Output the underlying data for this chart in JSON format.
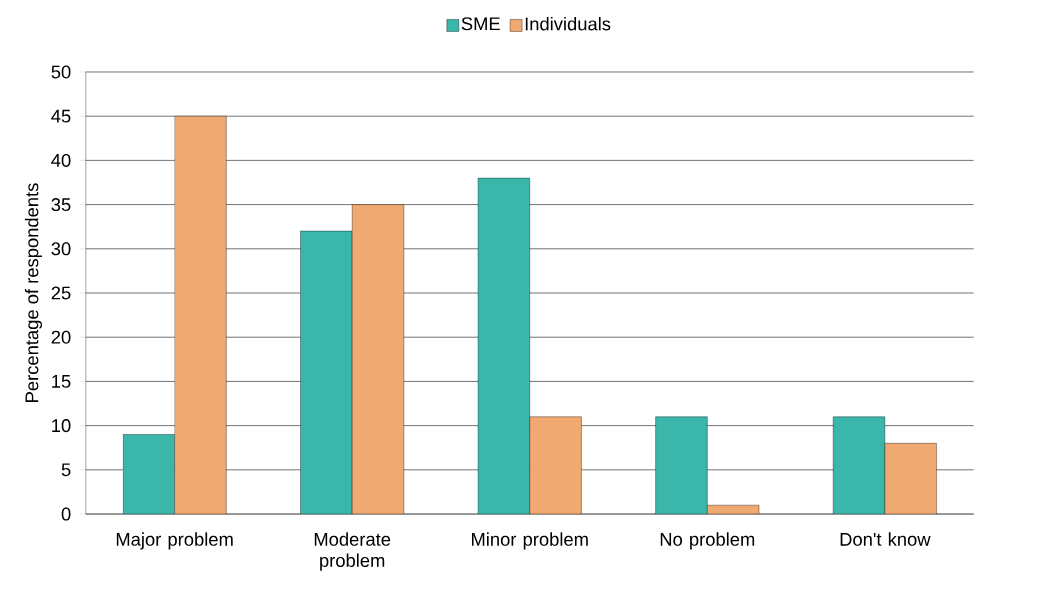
{
  "chart_data": {
    "type": "bar",
    "ylabel": "Percentage of respondents",
    "categories": [
      "Major problem",
      "Moderate problem",
      "Minor problem",
      "No problem",
      "Don't know"
    ],
    "series": [
      {
        "name": "SME",
        "color": "#3ab7aa",
        "values": [
          9,
          32,
          38,
          11,
          11
        ]
      },
      {
        "name": "Individuals",
        "color": "#f0a970",
        "values": [
          45,
          35,
          11,
          1,
          8
        ]
      }
    ],
    "ylim": [
      0,
      50
    ],
    "yticks": [
      0,
      5,
      10,
      15,
      20,
      25,
      30,
      35,
      40,
      45,
      50
    ],
    "grid": "y",
    "legend": "top"
  }
}
